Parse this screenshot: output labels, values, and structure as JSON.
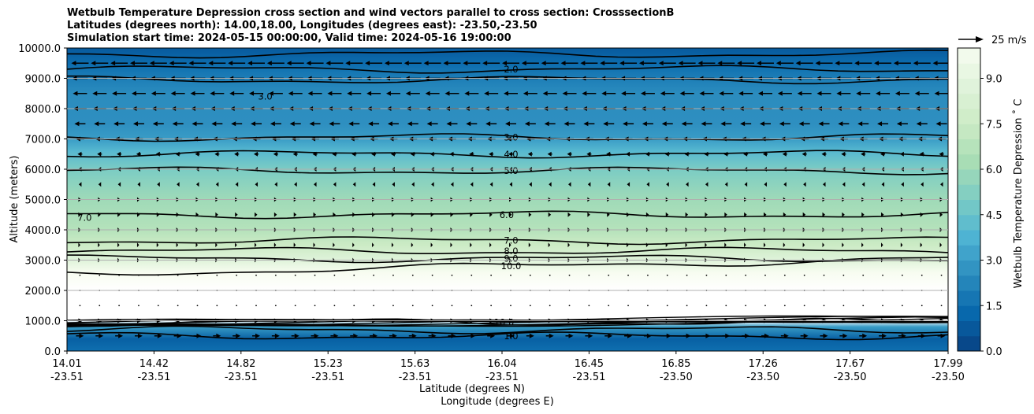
{
  "chart_data": {
    "type": "contour",
    "title": [
      "Wetbulb Temperature Depression cross section and wind vectors parallel to cross section: CrosssectionB",
      "Latitudes (degrees north): 14.00,18.00, Longitudes (degrees east): -23.50,-23.50",
      "Simulation start time: 2024-05-15 00:00:00, Valid time: 2024-05-16 19:00:00"
    ],
    "ylabel": "Altitude (meters)",
    "xlabel_lat": "Latitude (degrees N)",
    "xlabel_lon": "Longitude (degrees E)",
    "ylim": [
      0,
      10000
    ],
    "y_ticks": [
      "0.0",
      "1000.0",
      "2000.0",
      "3000.0",
      "4000.0",
      "5000.0",
      "6000.0",
      "7000.0",
      "8000.0",
      "9000.0",
      "10000.0"
    ],
    "x_ticks": [
      {
        "lat": "14.01",
        "lon": "-23.51"
      },
      {
        "lat": "14.42",
        "lon": "-23.51"
      },
      {
        "lat": "14.82",
        "lon": "-23.51"
      },
      {
        "lat": "15.23",
        "lon": "-23.51"
      },
      {
        "lat": "15.63",
        "lon": "-23.51"
      },
      {
        "lat": "16.04",
        "lon": "-23.51"
      },
      {
        "lat": "16.45",
        "lon": "-23.51"
      },
      {
        "lat": "16.85",
        "lon": "-23.50"
      },
      {
        "lat": "17.26",
        "lon": "-23.50"
      },
      {
        "lat": "17.67",
        "lon": "-23.50"
      },
      {
        "lat": "17.99",
        "lon": "-23.50"
      }
    ],
    "colorbar": {
      "label": "Wetbulb Temperature Depression $^\\circ$C",
      "label_display": "Wetbulb Temperature Depression ˚ C",
      "vmin": 0,
      "vmax": 10,
      "ticks": [
        "0.0",
        "1.5",
        "3.0",
        "4.5",
        "6.0",
        "7.5",
        "9.0"
      ],
      "colormap": "GnBu_r"
    },
    "quiver_key": "25 m/s",
    "contour_profile": [
      {
        "alt": 0,
        "value": 1.5
      },
      {
        "alt": 400,
        "value": 1.0
      },
      {
        "alt": 800,
        "value": 3.0
      },
      {
        "alt": 1000,
        "value": 10.5
      },
      {
        "alt": 2000,
        "value": 11.0
      },
      {
        "alt": 2600,
        "value": 10.0
      },
      {
        "alt": 3000,
        "value": 8.7
      },
      {
        "alt": 3500,
        "value": 7.5
      },
      {
        "alt": 4000,
        "value": 6.7
      },
      {
        "alt": 5000,
        "value": 6.0
      },
      {
        "alt": 6000,
        "value": 5.0
      },
      {
        "alt": 6600,
        "value": 4.0
      },
      {
        "alt": 7000,
        "value": 3.0
      },
      {
        "alt": 7500,
        "value": 2.6
      },
      {
        "alt": 8500,
        "value": 2.5
      },
      {
        "alt": 9000,
        "value": 2.0
      },
      {
        "alt": 9500,
        "value": 1.4
      },
      {
        "alt": 10000,
        "value": 0.8
      }
    ],
    "contour_labels": [
      {
        "text": "2.0",
        "x_frac": 0.504,
        "alt": 9300
      },
      {
        "text": "3.0",
        "x_frac": 0.504,
        "alt": 7050
      },
      {
        "text": "4.0",
        "x_frac": 0.504,
        "alt": 6500
      },
      {
        "text": "5.0",
        "x_frac": 0.504,
        "alt": 5950
      },
      {
        "text": "6.0",
        "x_frac": 0.499,
        "alt": 4500
      },
      {
        "text": "7.0",
        "x_frac": 0.504,
        "alt": 3650
      },
      {
        "text": "8.0",
        "x_frac": 0.504,
        "alt": 3300
      },
      {
        "text": "9.0",
        "x_frac": 0.504,
        "alt": 3050
      },
      {
        "text": "10.0",
        "x_frac": 0.504,
        "alt": 2800
      },
      {
        "text": "10.0",
        "x_frac": 0.496,
        "alt": 950
      },
      {
        "text": "1.0",
        "x_frac": 0.504,
        "alt": 500
      },
      {
        "text": "3.0",
        "x_frac": 0.225,
        "alt": 8400
      },
      {
        "text": "7.0",
        "x_frac": 0.02,
        "alt": 4400
      }
    ],
    "wind_rows": [
      {
        "alt": 9500,
        "u": -22
      },
      {
        "alt": 9000,
        "u": -20
      },
      {
        "alt": 8500,
        "u": -18
      },
      {
        "alt": 8000,
        "u": -17
      },
      {
        "alt": 7500,
        "u": -14
      },
      {
        "alt": 7000,
        "u": -11
      },
      {
        "alt": 6500,
        "u": -6
      },
      {
        "alt": 6000,
        "u": -4
      },
      {
        "alt": 5500,
        "u": -3
      },
      {
        "alt": 5000,
        "u": 3
      },
      {
        "alt": 4500,
        "u": 3
      },
      {
        "alt": 4000,
        "u": 2
      },
      {
        "alt": 3500,
        "u": 1
      },
      {
        "alt": 3000,
        "u": 1
      },
      {
        "alt": 2500,
        "u": 0.5
      },
      {
        "alt": 2000,
        "u": 0.5
      },
      {
        "alt": 1500,
        "u": 0.5
      },
      {
        "alt": 1000,
        "u": 8
      },
      {
        "alt": 500,
        "u": 10
      }
    ]
  }
}
